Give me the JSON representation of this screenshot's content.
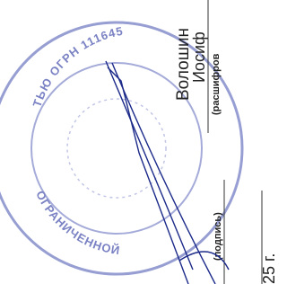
{
  "stamp": {
    "top_text": "ТЬЮ ОГРН 111645",
    "bottom_text": "ОГРАНИЧЕННОЙ"
  },
  "signature_block": {
    "surname": "Волошин",
    "name": "Иосиф",
    "decoding_label": "(расшифров",
    "signature_label": "(подпись)",
    "date": "25 г."
  }
}
